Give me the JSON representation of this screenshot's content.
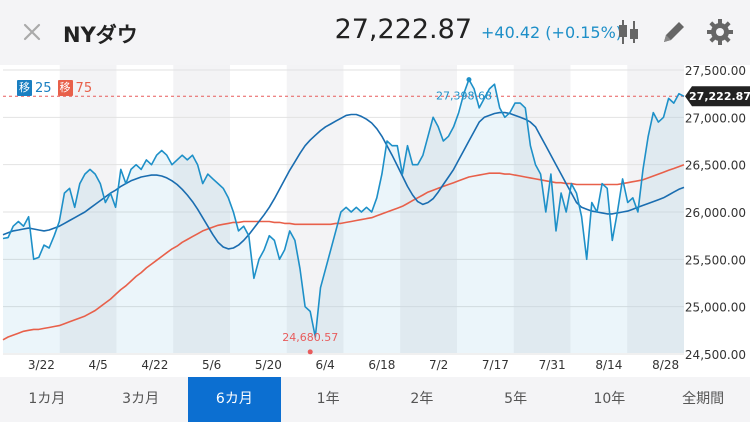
{
  "header": {
    "title": "NYダウ",
    "price": "27,222.87",
    "change": "+40.42 (+0.15%)"
  },
  "legend": {
    "ma1_label": "移",
    "ma1_value": "25",
    "ma1_color": "#1a7fc1",
    "ma2_label": "移",
    "ma2_value": "75",
    "ma2_color": "#e8604a"
  },
  "chart_data": {
    "type": "line",
    "x_tick_labels": [
      "3/22",
      "4/5",
      "4/22",
      "5/6",
      "5/20",
      "6/4",
      "6/18",
      "7/2",
      "7/17",
      "7/31",
      "8/14",
      "8/28"
    ],
    "y_tick_labels": [
      "27,500.00",
      "27,000.00",
      "26,500.00",
      "26,000.00",
      "25,500.00",
      "25,000.00",
      "24,500.00"
    ],
    "ylim": [
      24500,
      27500
    ],
    "current_value_label": "27,222.87",
    "current_value": 27222.87,
    "high_label": "27,398.68",
    "high_value": 27398.68,
    "high_index": 91,
    "low_label": "24,680.57",
    "low_value": 24680.57,
    "low_index": 60,
    "colors": {
      "price": "#1e90c8",
      "ma25": "#1a6db0",
      "ma75": "#e8604a",
      "ref_line": "#e85c5c"
    },
    "series": [
      {
        "key": "price",
        "values": [
          25720,
          25730,
          25850,
          25900,
          25850,
          25950,
          25500,
          25520,
          25650,
          25620,
          25750,
          25900,
          26200,
          26250,
          26050,
          26300,
          26400,
          26450,
          26400,
          26300,
          26100,
          26200,
          26050,
          26450,
          26300,
          26450,
          26500,
          26450,
          26550,
          26500,
          26600,
          26650,
          26600,
          26500,
          26550,
          26600,
          26550,
          26600,
          26500,
          26300,
          26400,
          26350,
          26300,
          26250,
          26150,
          26000,
          25800,
          25850,
          25750,
          25300,
          25500,
          25600,
          25750,
          25700,
          25500,
          25600,
          25800,
          25700,
          25400,
          25000,
          24950,
          24680,
          25200,
          25400,
          25600,
          25800,
          26000,
          26050,
          26000,
          26050,
          26000,
          26050,
          26000,
          26150,
          26400,
          26750,
          26700,
          26700,
          26400,
          26700,
          26500,
          26500,
          26600,
          26800,
          27000,
          26900,
          26750,
          26800,
          26900,
          27050,
          27250,
          27400,
          27300,
          27100,
          27200,
          27300,
          27350,
          27100,
          27000,
          27050,
          27150,
          27150,
          27100,
          26700,
          26500,
          26400,
          26000,
          26400,
          25800,
          26200,
          26000,
          26300,
          26200,
          25950,
          25500,
          26100,
          26000,
          26300,
          26250,
          25700,
          26000,
          26350,
          26100,
          26150,
          26000,
          26450,
          26800,
          27050,
          26950,
          27000,
          27200,
          27150,
          27250,
          27222
        ],
        "name": ""
      },
      {
        "key": "ma25",
        "values": [
          25760,
          25780,
          25800,
          25810,
          25820,
          25830,
          25820,
          25810,
          25800,
          25810,
          25830,
          25850,
          25880,
          25910,
          25940,
          25970,
          26000,
          26040,
          26080,
          26120,
          26160,
          26200,
          26230,
          26270,
          26300,
          26330,
          26350,
          26370,
          26380,
          26390,
          26390,
          26380,
          26360,
          26330,
          26290,
          26240,
          26180,
          26110,
          26030,
          25940,
          25850,
          25760,
          25680,
          25630,
          25610,
          25620,
          25650,
          25700,
          25760,
          25830,
          25900,
          25970,
          26050,
          26140,
          26240,
          26340,
          26440,
          26530,
          26620,
          26700,
          26760,
          26810,
          26860,
          26900,
          26930,
          26960,
          26990,
          27020,
          27030,
          27030,
          27010,
          26980,
          26940,
          26880,
          26800,
          26700,
          26600,
          26490,
          26380,
          26270,
          26180,
          26110,
          26080,
          26100,
          26140,
          26210,
          26290,
          26370,
          26450,
          26550,
          26650,
          26750,
          26850,
          26950,
          27000,
          27020,
          27040,
          27050,
          27050,
          27040,
          27020,
          27000,
          26980,
          26950,
          26900,
          26800,
          26700,
          26600,
          26500,
          26400,
          26300,
          26200,
          26100,
          26050,
          26030,
          26010,
          26000,
          25990,
          25980,
          25980,
          25990,
          26000,
          26010,
          26030,
          26050,
          26070,
          26090,
          26110,
          26130,
          26150,
          26180,
          26210,
          26240,
          26260
        ],
        "name": ""
      },
      {
        "key": "ma75",
        "values": [
          24650,
          24680,
          24700,
          24720,
          24740,
          24750,
          24760,
          24760,
          24770,
          24780,
          24790,
          24800,
          24820,
          24840,
          24860,
          24880,
          24900,
          24930,
          24960,
          25000,
          25040,
          25080,
          25130,
          25180,
          25220,
          25270,
          25320,
          25360,
          25410,
          25450,
          25490,
          25530,
          25570,
          25610,
          25640,
          25680,
          25710,
          25740,
          25770,
          25800,
          25820,
          25840,
          25860,
          25870,
          25880,
          25890,
          25890,
          25900,
          25900,
          25900,
          25900,
          25900,
          25900,
          25890,
          25890,
          25880,
          25880,
          25870,
          25870,
          25870,
          25870,
          25870,
          25870,
          25870,
          25870,
          25880,
          25880,
          25890,
          25900,
          25910,
          25920,
          25930,
          25940,
          25960,
          25980,
          26000,
          26020,
          26040,
          26060,
          26090,
          26120,
          26150,
          26180,
          26210,
          26230,
          26250,
          26270,
          26290,
          26310,
          26330,
          26350,
          26370,
          26380,
          26390,
          26400,
          26410,
          26410,
          26410,
          26400,
          26400,
          26390,
          26380,
          26370,
          26360,
          26350,
          26340,
          26330,
          26320,
          26310,
          26310,
          26300,
          26300,
          26290,
          26290,
          26290,
          26290,
          26290,
          26290,
          26290,
          26290,
          26290,
          26300,
          26310,
          26320,
          26330,
          26340,
          26360,
          26380,
          26400,
          26420,
          26440,
          26460,
          26480,
          26500
        ],
        "name": ""
      }
    ],
    "grid": true,
    "ref_line": "horizontal dashed at current value"
  },
  "tabs": [
    {
      "label": "1カ月",
      "active": false
    },
    {
      "label": "3カ月",
      "active": false
    },
    {
      "label": "6カ月",
      "active": true
    },
    {
      "label": "1年",
      "active": false
    },
    {
      "label": "2年",
      "active": false
    },
    {
      "label": "5年",
      "active": false
    },
    {
      "label": "10年",
      "active": false
    },
    {
      "label": "全期間",
      "active": false
    }
  ],
  "icons": {
    "close": "close-icon",
    "candlestick": "candlestick-icon",
    "edit": "pencil-icon",
    "settings": "gear-icon"
  }
}
